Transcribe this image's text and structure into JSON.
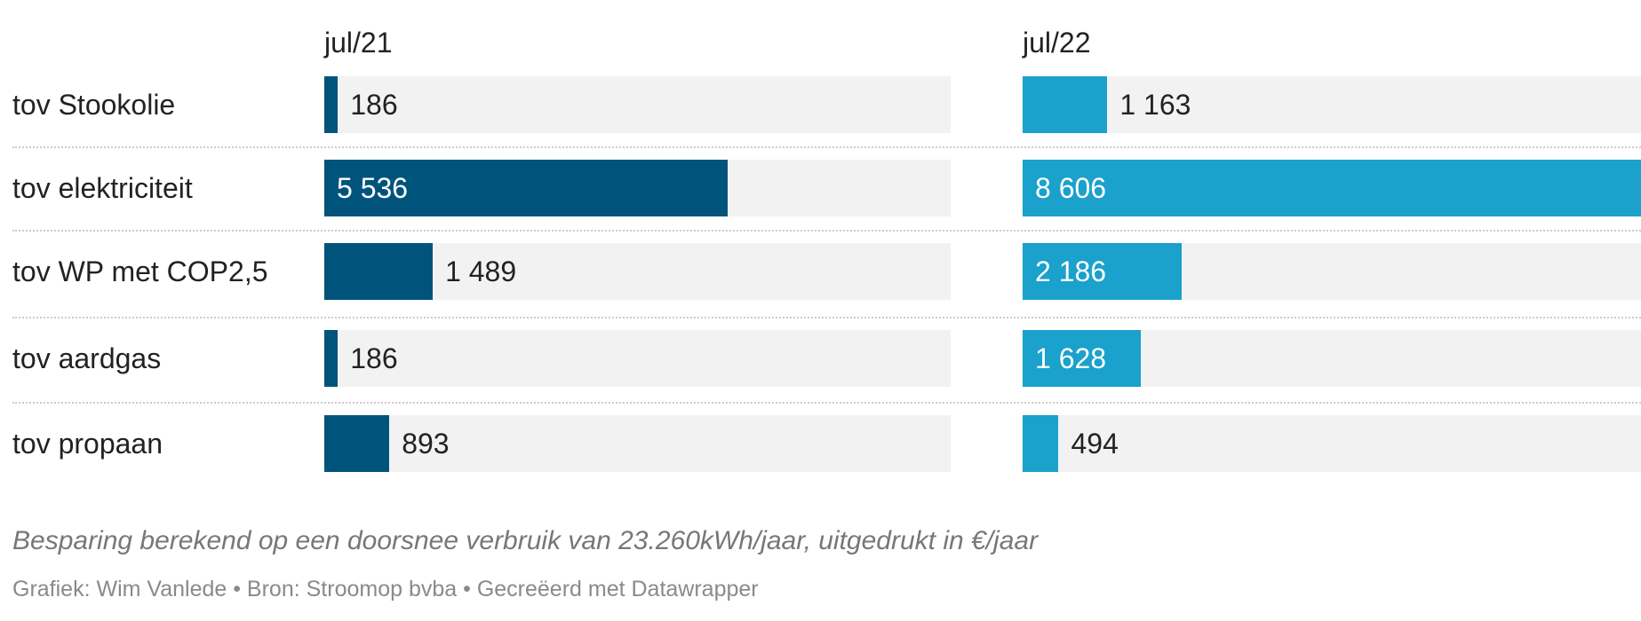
{
  "chart_data": {
    "type": "bar",
    "categories": [
      "tov Stookolie",
      "tov elektriciteit",
      "tov WP met COP2,5",
      "tov aardgas",
      "tov propaan"
    ],
    "series": [
      {
        "name": "jul/21",
        "values": [
          186,
          5536,
          1489,
          186,
          893
        ],
        "labels": [
          "186",
          "5 536",
          "1 489",
          "186",
          "893"
        ],
        "color": "#00547c"
      },
      {
        "name": "jul/22",
        "values": [
          1163,
          8606,
          2186,
          1628,
          494
        ],
        "labels": [
          "1 163",
          "8 606",
          "2 186",
          "1 628",
          "494"
        ],
        "color": "#1aa1cc"
      }
    ],
    "xlim": [
      0,
      8600
    ],
    "track_color": "#f2f2f2",
    "note": "Besparing berekend op een doorsnee verbruik van 23.260kWh/jaar, uitgedrukt in €/jaar",
    "credit": "Grafiek: Wim Vanlede • Bron: Stroomop bvba • Gecreëerd met Datawrapper"
  }
}
